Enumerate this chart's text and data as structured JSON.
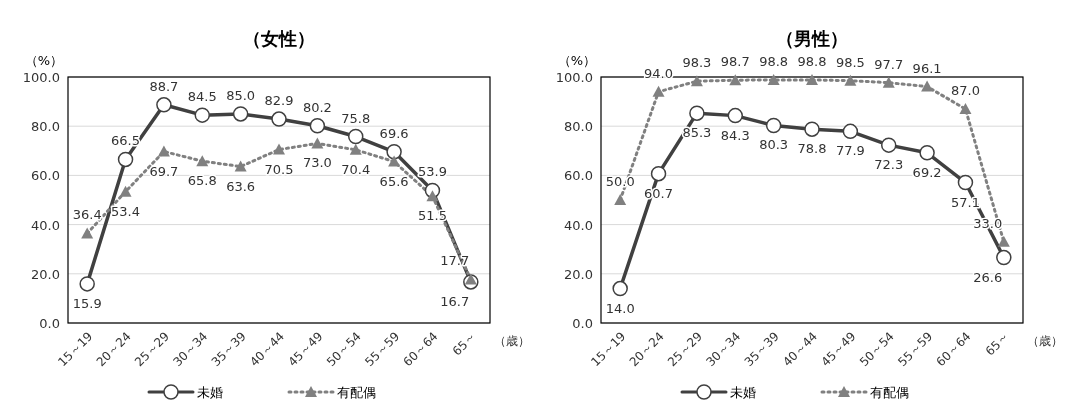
{
  "chart_data": [
    {
      "type": "line",
      "title": "（女性）",
      "ylabel": "（%）",
      "xlabel": "（歳）",
      "categories": [
        "15～19",
        "20～24",
        "25～29",
        "30～34",
        "35～39",
        "40～44",
        "45～49",
        "50～54",
        "55～59",
        "60～64",
        "65～"
      ],
      "ylim": [
        0,
        100
      ],
      "yticks": [
        {
          "value": 0,
          "label": "0.0"
        },
        {
          "value": 20,
          "label": "20.0"
        },
        {
          "value": 40,
          "label": "40.0"
        },
        {
          "value": 60,
          "label": "60.0"
        },
        {
          "value": 80,
          "label": "80.0"
        },
        {
          "value": 100,
          "label": "100.0"
        }
      ],
      "grid": "y",
      "legend": "bottom",
      "series": [
        {
          "name": "未婚",
          "color": "#404040",
          "marker": "circle",
          "line_style": "solid",
          "values": [
            15.9,
            66.5,
            88.7,
            84.5,
            85.0,
            82.9,
            80.2,
            75.8,
            69.6,
            53.9,
            16.7
          ],
          "value_labels": [
            "15.9",
            "66.5",
            "88.7",
            "84.5",
            "85.0",
            "82.9",
            "80.2",
            "75.8",
            "69.6",
            "53.9",
            "16.7"
          ]
        },
        {
          "name": "有配偶",
          "color": "#808080",
          "marker": "triangle",
          "line_style": "dotted",
          "values": [
            36.4,
            53.4,
            69.7,
            65.8,
            63.6,
            70.5,
            73.0,
            70.4,
            65.6,
            51.5,
            17.7
          ],
          "value_labels": [
            "36.4",
            "53.4",
            "69.7",
            "65.8",
            "63.6",
            "70.5",
            "73.0",
            "70.4",
            "65.6",
            "51.5",
            "17.7"
          ]
        }
      ]
    },
    {
      "type": "line",
      "title": "（男性）",
      "ylabel": "（%）",
      "xlabel": "（歳）",
      "categories": [
        "15～19",
        "20～24",
        "25～29",
        "30～34",
        "35～39",
        "40～44",
        "45～49",
        "50～54",
        "55～59",
        "60～64",
        "65～"
      ],
      "ylim": [
        0,
        100
      ],
      "yticks": [
        {
          "value": 0,
          "label": "0.0"
        },
        {
          "value": 20,
          "label": "20.0"
        },
        {
          "value": 40,
          "label": "40.0"
        },
        {
          "value": 60,
          "label": "60.0"
        },
        {
          "value": 80,
          "label": "80.0"
        },
        {
          "value": 100,
          "label": "100.0"
        }
      ],
      "grid": "y",
      "legend": "bottom",
      "series": [
        {
          "name": "未婚",
          "color": "#404040",
          "marker": "circle",
          "line_style": "solid",
          "values": [
            14.0,
            60.7,
            85.3,
            84.3,
            80.3,
            78.8,
            77.9,
            72.3,
            69.2,
            57.1,
            26.6
          ],
          "value_labels": [
            "14.0",
            "60.7",
            "85.3",
            "84.3",
            "80.3",
            "78.8",
            "77.9",
            "72.3",
            "69.2",
            "57.1",
            "26.6"
          ]
        },
        {
          "name": "有配偶",
          "color": "#808080",
          "marker": "triangle",
          "line_style": "dotted",
          "values": [
            50.0,
            94.0,
            98.3,
            98.7,
            98.8,
            98.8,
            98.5,
            97.7,
            96.1,
            87.0,
            33.0
          ],
          "value_labels": [
            "50.0",
            "94.0",
            "98.3",
            "98.7",
            "98.8",
            "98.8",
            "98.5",
            "97.7",
            "96.1",
            "87.0",
            "33.0"
          ]
        }
      ]
    }
  ]
}
